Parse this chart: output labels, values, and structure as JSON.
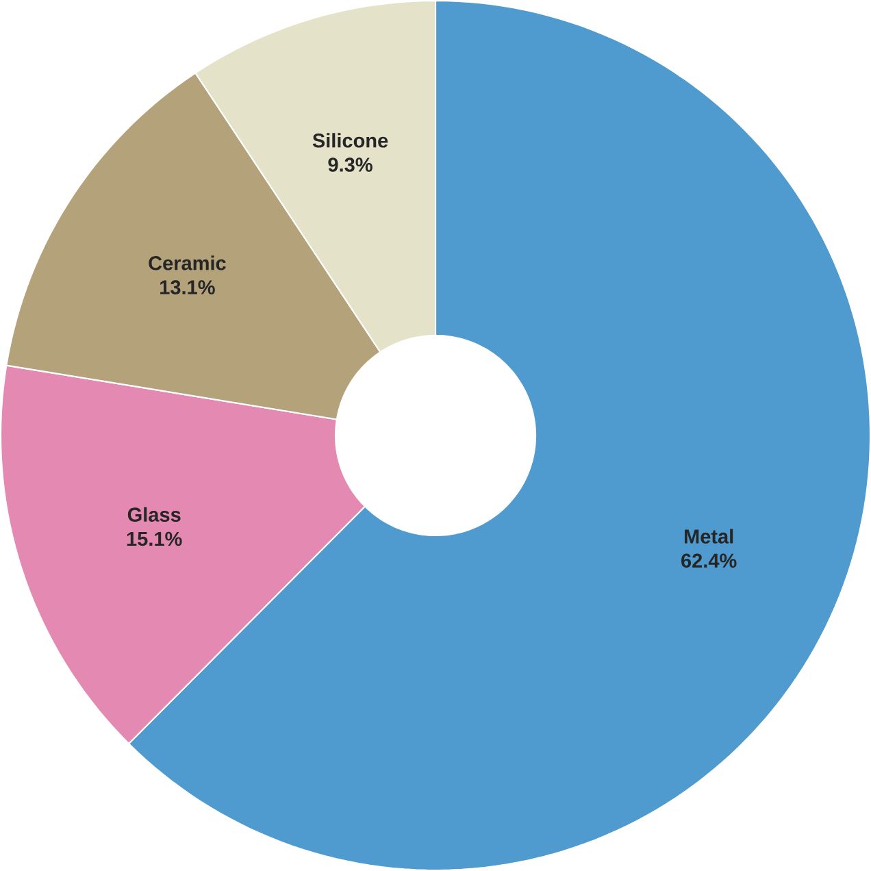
{
  "chart_data": {
    "type": "donut",
    "categories": [
      "Metal",
      "Glass",
      "Ceramic",
      "Silicone"
    ],
    "values": [
      62.4,
      15.1,
      13.1,
      9.3
    ],
    "value_labels": [
      "62.4%",
      "15.1%",
      "13.1%",
      "9.3%"
    ],
    "colors": [
      "#4f9bcf",
      "#e48ab2",
      "#b4a27b",
      "#e4e2c9"
    ]
  }
}
